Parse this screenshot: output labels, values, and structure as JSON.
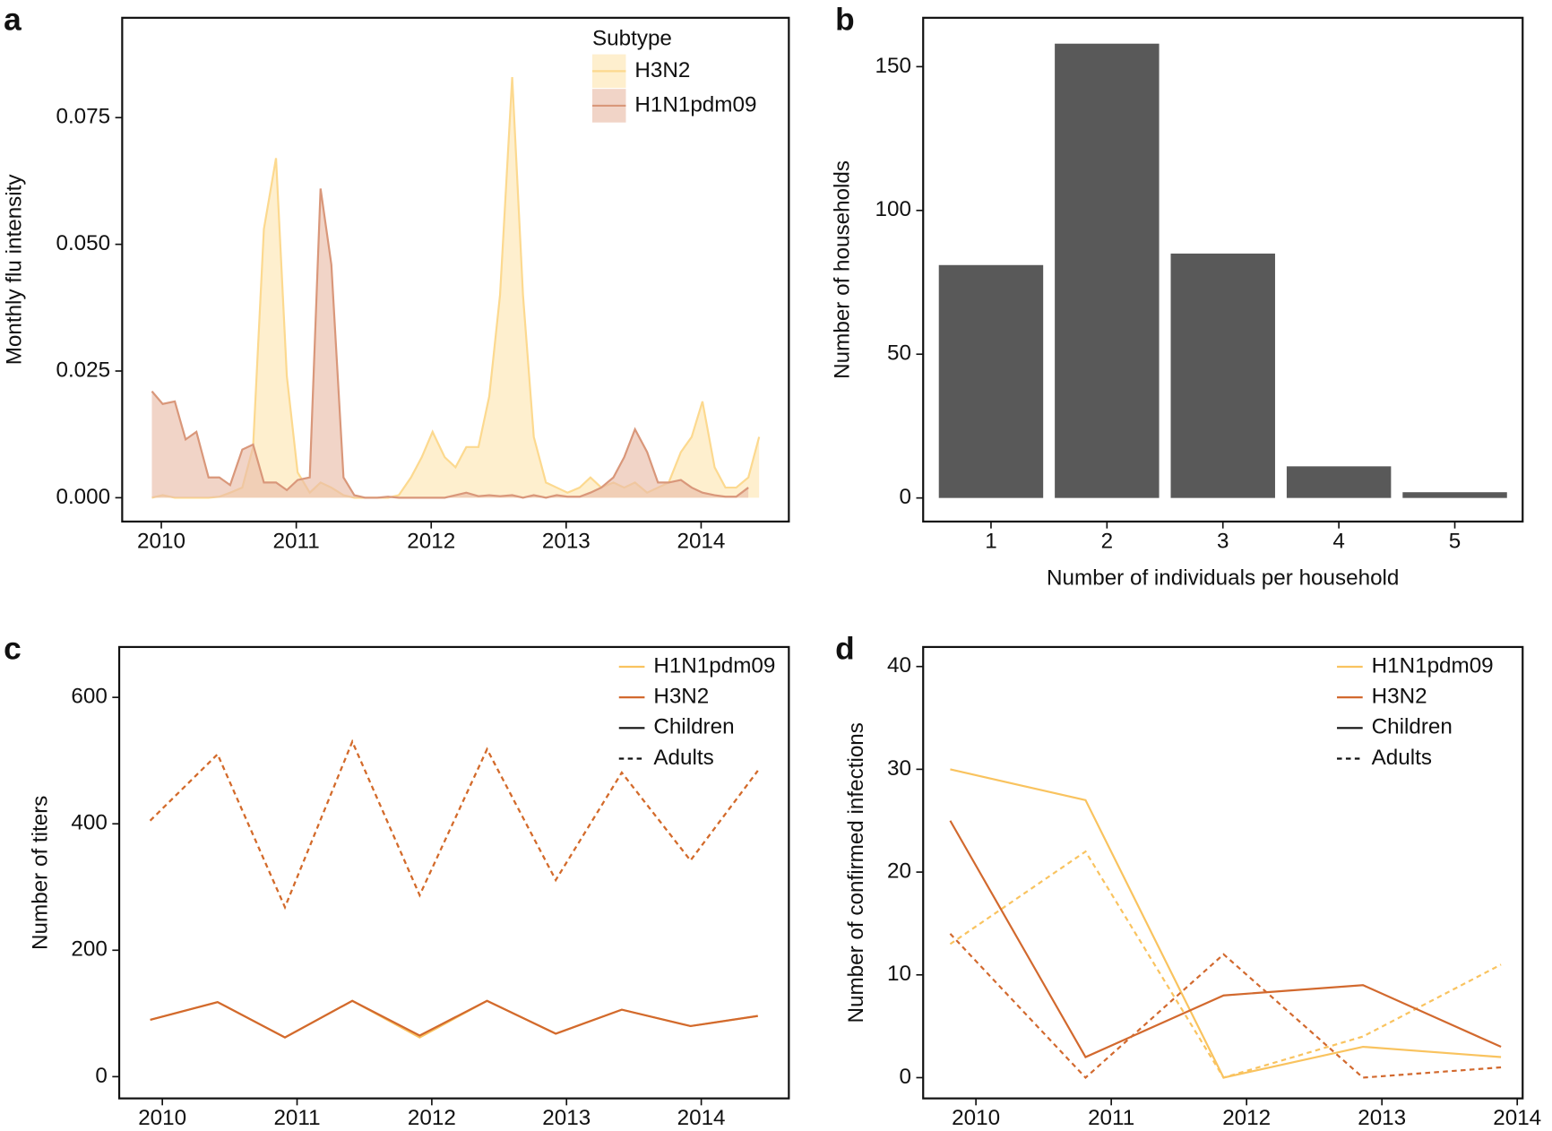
{
  "chart_data": [
    {
      "type": "area",
      "label": "a",
      "ylabel": "Monthly flu intensity",
      "legend_title": "Subtype",
      "legend": "top right",
      "x": [
        2009.93,
        2010.01,
        2010.1,
        2010.18,
        2010.26,
        2010.35,
        2010.43,
        2010.51,
        2010.6,
        2010.68,
        2010.76,
        2010.85,
        2010.93,
        2011.01,
        2011.1,
        2011.18,
        2011.26,
        2011.35,
        2011.43,
        2011.51,
        2011.6,
        2011.68,
        2011.76,
        2011.85,
        2011.93,
        2012.01,
        2012.1,
        2012.18,
        2012.26,
        2012.35,
        2012.43,
        2012.51,
        2012.6,
        2012.68,
        2012.76,
        2012.85,
        2012.93,
        2013.01,
        2013.1,
        2013.18,
        2013.26,
        2013.35,
        2013.43,
        2013.51,
        2013.6,
        2013.68,
        2013.76,
        2013.85,
        2013.93,
        2014.01,
        2014.1,
        2014.18,
        2014.26,
        2014.35,
        2014.43
      ],
      "xlim": [
        2009.71,
        2014.65
      ],
      "xticks": [
        2010,
        2011,
        2012,
        2013,
        2014
      ],
      "ylim": [
        -0.0047,
        0.0947
      ],
      "yticks": [
        {
          "value": 0,
          "label": "0.000"
        },
        {
          "value": 0.025,
          "label": "0.025"
        },
        {
          "value": 0.05,
          "label": "0.050"
        },
        {
          "value": 0.075,
          "label": "0.075"
        }
      ],
      "series": [
        {
          "name": "H3N2",
          "color": "#fcd98f",
          "fill": "#fde6b4",
          "values": [
            0,
            0.0005,
            0,
            0,
            0,
            0,
            0.0002,
            0.001,
            0.002,
            0.01,
            0.053,
            0.067,
            0.024,
            0.005,
            0.001,
            0.003,
            0.002,
            0.0005,
            0,
            0,
            0,
            0,
            0.0005,
            0.004,
            0.008,
            0.013,
            0.008,
            0.006,
            0.01,
            0.01,
            0.02,
            0.04,
            0.083,
            0.04,
            0.012,
            0.003,
            0.002,
            0.001,
            0.002,
            0.004,
            0.002,
            0.003,
            0.002,
            0.003,
            0.001,
            0.002,
            0.003,
            0.009,
            0.012,
            0.019,
            0.006,
            0.002,
            0.002,
            0.004,
            0.012
          ]
        },
        {
          "name": "H1N1pdm09",
          "color": "#d9977a",
          "fill": "#e9bda9",
          "values": [
            0.021,
            0.0185,
            0.019,
            0.0115,
            0.013,
            0.004,
            0.004,
            0.0025,
            0.0095,
            0.0105,
            0.003,
            0.003,
            0.0015,
            0.0035,
            0.004,
            0.061,
            0.046,
            0.004,
            0.0005,
            0,
            0,
            0.0002,
            0,
            0,
            0,
            0,
            0,
            0.0005,
            0.001,
            0.0003,
            0.0005,
            0.0003,
            0.0005,
            0,
            0.0005,
            0,
            0.0005,
            0.0002,
            0.0002,
            0.001,
            0.002,
            0.004,
            0.008,
            0.0135,
            0.009,
            0.003,
            0.003,
            0.0035,
            0.002,
            0.001,
            0.0005,
            0.0002,
            0.0002,
            0.002,
            null
          ]
        }
      ]
    },
    {
      "type": "bar",
      "label": "b",
      "xlabel": "Number of individuals per household",
      "ylabel": "Number of households",
      "categories": [
        "1",
        "2",
        "3",
        "4",
        "5"
      ],
      "values": [
        81,
        158,
        85,
        11,
        2
      ],
      "color": "#595959",
      "ylim": [
        -8.2,
        167
      ],
      "yticks": [
        0,
        50,
        100,
        150
      ]
    },
    {
      "type": "line",
      "label": "c",
      "ylabel": "Number of titers",
      "legend": "top right",
      "x": [
        2009.91,
        2010.41,
        2010.91,
        2011.41,
        2011.91,
        2012.41,
        2012.92,
        2013.41,
        2013.92,
        2014.42
      ],
      "xlim": [
        2009.68,
        2014.65
      ],
      "xticks": [
        2010,
        2011,
        2012,
        2013,
        2014
      ],
      "ylim": [
        -34.4,
        679.7
      ],
      "yticks": [
        0,
        200,
        400,
        600
      ],
      "series": [
        {
          "name": "H1N1pdm09",
          "color": "#f9c35f",
          "lines": [
            [
              90,
              118,
              62,
              120,
              62,
              120,
              68,
              106,
              80,
              96
            ],
            [
              405,
              510,
              268,
              530,
              287,
              518,
              311,
              481,
              342,
              484
            ]
          ]
        },
        {
          "name": "H3N2",
          "color": "#d2692e",
          "lines": [
            [
              90,
              118,
              62,
              120,
              65,
              120,
              68,
              106,
              80,
              96
            ],
            [
              405,
              510,
              268,
              530,
              287,
              518,
              311,
              481,
              342,
              484
            ]
          ]
        }
      ],
      "line_styles": [
        {
          "name": "Children",
          "dash": "solid"
        },
        {
          "name": "Adults",
          "dash": "dashed"
        }
      ]
    },
    {
      "type": "line",
      "label": "d",
      "ylabel": "Number of  confirmed infections",
      "legend": "top right",
      "x": [
        2009.81,
        2010.81,
        2011.83,
        2012.86,
        2013.88
      ],
      "xlim": [
        2009.61,
        2014.04
      ],
      "xticks": [
        2010,
        2011,
        2012,
        2013,
        2014
      ],
      "ylim": [
        -2.02,
        41.9
      ],
      "yticks": [
        0,
        10,
        20,
        30,
        40
      ],
      "series": [
        {
          "name": "H1N1pdm09",
          "color": "#f9c35f",
          "lines": [
            [
              30,
              27,
              0,
              3,
              2
            ],
            [
              13,
              22,
              0,
              4,
              11
            ]
          ]
        },
        {
          "name": "H3N2",
          "color": "#d2692e",
          "lines": [
            [
              25,
              2,
              8,
              9,
              3
            ],
            [
              14,
              0,
              12,
              0,
              1
            ]
          ]
        }
      ],
      "line_styles": [
        {
          "name": "Children",
          "dash": "solid"
        },
        {
          "name": "Adults",
          "dash": "dashed"
        }
      ]
    }
  ]
}
